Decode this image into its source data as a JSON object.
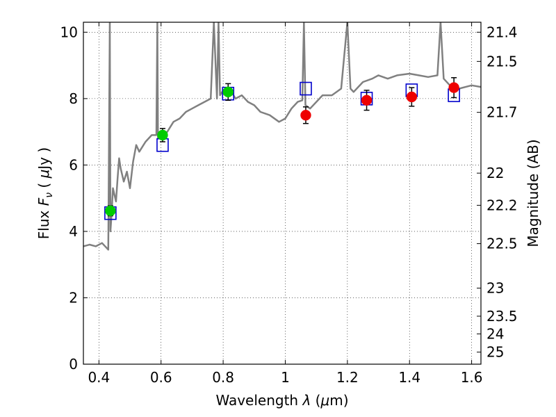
{
  "chart_data": {
    "type": "scatter",
    "xlabel": "Wavelength  λ (μm)",
    "ylabel": "Flux  F_ν  ( μJy )",
    "y2label": "Magnitude (AB)",
    "xlim": [
      0.35,
      1.63
    ],
    "ylim": [
      0,
      10.3
    ],
    "grid": true,
    "x_ticks": [
      {
        "value": 0.4,
        "label": "0.4"
      },
      {
        "value": 0.6,
        "label": "0.6"
      },
      {
        "value": 0.8,
        "label": "0.8"
      },
      {
        "value": 1.0,
        "label": "1"
      },
      {
        "value": 1.2,
        "label": "1.2"
      },
      {
        "value": 1.4,
        "label": "1.4"
      },
      {
        "value": 1.6,
        "label": "1.6"
      }
    ],
    "y_ticks": [
      {
        "value": 0,
        "label": "0"
      },
      {
        "value": 2,
        "label": "2"
      },
      {
        "value": 4,
        "label": "4"
      },
      {
        "value": 6,
        "label": "6"
      },
      {
        "value": 8,
        "label": "8"
      },
      {
        "value": 10,
        "label": "10"
      }
    ],
    "y2_ticks": [
      {
        "mag": 21.4,
        "label": "21.4"
      },
      {
        "mag": 21.5,
        "label": "21.5"
      },
      {
        "mag": 21.7,
        "label": "21.7"
      },
      {
        "mag": 22,
        "label": "22"
      },
      {
        "mag": 22.2,
        "label": "22.2"
      },
      {
        "mag": 22.5,
        "label": "22.5"
      },
      {
        "mag": 23,
        "label": "23"
      },
      {
        "mag": 23.5,
        "label": "23.5"
      },
      {
        "mag": 24,
        "label": "24"
      },
      {
        "mag": 25,
        "label": "25"
      }
    ],
    "series": [
      {
        "kind": "model-spectrum",
        "style": "line",
        "color": "#808080",
        "x": [
          0.35,
          0.37,
          0.39,
          0.41,
          0.425,
          0.43,
          0.435,
          0.437,
          0.44,
          0.445,
          0.455,
          0.46,
          0.465,
          0.47,
          0.48,
          0.49,
          0.5,
          0.51,
          0.52,
          0.53,
          0.55,
          0.57,
          0.585,
          0.588,
          0.59,
          0.6,
          0.62,
          0.64,
          0.66,
          0.68,
          0.7,
          0.72,
          0.74,
          0.76,
          0.77,
          0.78,
          0.785,
          0.79,
          0.8,
          0.82,
          0.84,
          0.86,
          0.88,
          0.9,
          0.92,
          0.95,
          0.98,
          1.0,
          1.02,
          1.04,
          1.055,
          1.06,
          1.065,
          1.08,
          1.1,
          1.12,
          1.15,
          1.18,
          1.2,
          1.21,
          1.22,
          1.25,
          1.28,
          1.3,
          1.33,
          1.36,
          1.4,
          1.43,
          1.46,
          1.49,
          1.5,
          1.51,
          1.53,
          1.56,
          1.6,
          1.63
        ],
        "y": [
          3.55,
          3.6,
          3.55,
          3.65,
          3.5,
          3.45,
          10.3,
          4.0,
          4.4,
          5.3,
          4.9,
          5.6,
          6.2,
          5.9,
          5.5,
          5.8,
          5.3,
          6.1,
          6.6,
          6.4,
          6.7,
          6.9,
          6.9,
          10.3,
          6.8,
          6.9,
          7.0,
          7.3,
          7.4,
          7.6,
          7.7,
          7.8,
          7.9,
          8.0,
          10.3,
          8.0,
          10.3,
          8.1,
          8.25,
          8.3,
          8.0,
          8.1,
          7.9,
          7.8,
          7.6,
          7.5,
          7.3,
          7.4,
          7.7,
          7.9,
          7.95,
          10.3,
          7.8,
          7.7,
          7.9,
          8.1,
          8.1,
          8.3,
          10.3,
          8.3,
          8.2,
          8.5,
          8.6,
          8.7,
          8.6,
          8.7,
          8.75,
          8.7,
          8.65,
          8.7,
          10.3,
          8.6,
          8.4,
          8.3,
          8.4,
          8.35
        ]
      },
      {
        "kind": "model-photometry",
        "style": "open-square",
        "color": "#0000cc",
        "x": [
          0.437,
          0.605,
          0.816,
          1.066,
          1.262,
          1.407,
          1.543
        ],
        "y": [
          4.55,
          6.6,
          8.15,
          8.3,
          8.0,
          8.25,
          8.1
        ]
      },
      {
        "kind": "observed-green",
        "style": "filled-circle",
        "color": "#00cc00",
        "x": [
          0.437,
          0.605,
          0.816
        ],
        "y": [
          4.62,
          6.9,
          8.2
        ],
        "yerr": [
          0.15,
          0.2,
          0.25
        ]
      },
      {
        "kind": "observed-red",
        "style": "filled-circle",
        "color": "#ee0000",
        "x": [
          1.066,
          1.262,
          1.407,
          1.543
        ],
        "y": [
          7.5,
          7.95,
          8.05,
          8.33
        ],
        "yerr": [
          0.25,
          0.3,
          0.28,
          0.3
        ]
      }
    ]
  }
}
